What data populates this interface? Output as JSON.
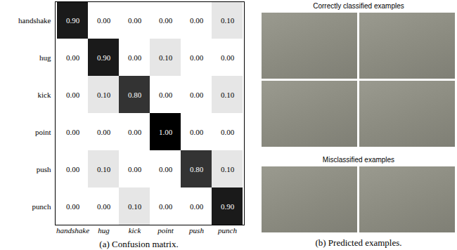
{
  "chart_data": {
    "type": "heatmap",
    "x": [
      "handshake",
      "hug",
      "kick",
      "point",
      "push",
      "punch"
    ],
    "y": [
      "handshake",
      "hug",
      "kick",
      "point",
      "push",
      "punch"
    ],
    "cells": [
      [
        0.9,
        0,
        0,
        0,
        0,
        0.1
      ],
      [
        0,
        0.9,
        0,
        0.1,
        0,
        0
      ],
      [
        0,
        0.1,
        0.8,
        0,
        0,
        0.1
      ],
      [
        0,
        0,
        0,
        1,
        0,
        0
      ],
      [
        0,
        0.1,
        0,
        0,
        0.8,
        0.1
      ],
      [
        0,
        0,
        0.1,
        0,
        0,
        0.9
      ]
    ],
    "value_labels": [
      [
        "0.90",
        "0.00",
        "0.00",
        "0.00",
        "0.00",
        "0.10"
      ],
      [
        "0.00",
        "0.90",
        "0.00",
        "0.10",
        "0.00",
        "0.00"
      ],
      [
        "0.00",
        "0.10",
        "0.80",
        "0.00",
        "0.00",
        "0.10"
      ],
      [
        "0.00",
        "0.00",
        "0.00",
        "1.00",
        "0.00",
        "0.00"
      ],
      [
        "0.00",
        "0.10",
        "0.00",
        "0.00",
        "0.80",
        "0.10"
      ],
      [
        "0.00",
        "0.00",
        "0.10",
        "0.00",
        "0.00",
        "0.90"
      ]
    ],
    "data_labels": true,
    "caption": "(a) Confusion matrix."
  },
  "panel_b": {
    "caption": "(b) Predicted examples.",
    "groups": [
      {
        "title": "Correctly classified examples",
        "images": 4
      },
      {
        "title": "Misclassified examples",
        "images": 2
      }
    ]
  }
}
